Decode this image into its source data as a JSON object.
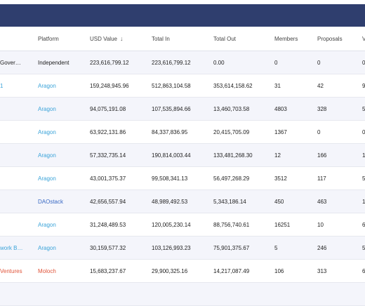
{
  "columns": {
    "platform": "Platform",
    "usd_value": "USD Value",
    "total_in": "Total In",
    "total_out": "Total Out",
    "members": "Members",
    "proposals": "Proposals",
    "more": "V"
  },
  "sort_icon": "arrow-down-icon",
  "rows": [
    {
      "name": "Gover…",
      "platform": "Independent",
      "usd": "223,616,799.12",
      "in": "223,616,799.12",
      "out": "0.00",
      "members": "0",
      "proposals": "0",
      "more": "0"
    },
    {
      "name": "1",
      "platform": "Aragon",
      "usd": "159,248,945.96",
      "in": "512,863,104.58",
      "out": "353,614,158.62",
      "members": "31",
      "proposals": "42",
      "more": "9"
    },
    {
      "name": "",
      "platform": "Aragon",
      "usd": "94,075,191.08",
      "in": "107,535,894.66",
      "out": "13,460,703.58",
      "members": "4803",
      "proposals": "328",
      "more": "5"
    },
    {
      "name": "",
      "platform": "Aragon",
      "usd": "63,922,131.86",
      "in": "84,337,836.95",
      "out": "20,415,705.09",
      "members": "1367",
      "proposals": "0",
      "more": "0"
    },
    {
      "name": "",
      "platform": "Aragon",
      "usd": "57,332,735.14",
      "in": "190,814,003.44",
      "out": "133,481,268.30",
      "members": "12",
      "proposals": "166",
      "more": "1"
    },
    {
      "name": "",
      "platform": "Aragon",
      "usd": "43,001,375.37",
      "in": "99,508,341.13",
      "out": "56,497,268.29",
      "members": "3512",
      "proposals": "117",
      "more": "5"
    },
    {
      "name": "",
      "platform": "DAOstack",
      "usd": "42,656,557.94",
      "in": "48,989,492.53",
      "out": "5,343,186.14",
      "members": "450",
      "proposals": "463",
      "more": "1"
    },
    {
      "name": "",
      "platform": "Aragon",
      "usd": "31,248,489.53",
      "in": "120,005,230.14",
      "out": "88,756,740.61",
      "members": "16251",
      "proposals": "10",
      "more": "6"
    },
    {
      "name": "work B…",
      "platform": "Aragon",
      "usd": "30,159,577.32",
      "in": "103,126,993.23",
      "out": "75,901,375.67",
      "members": "5",
      "proposals": "246",
      "more": "5"
    },
    {
      "name": "Ventures",
      "platform": "Moloch",
      "usd": "15,683,237.67",
      "in": "29,900,325.16",
      "out": "14,217,087.49",
      "members": "106",
      "proposals": "313",
      "more": "6"
    }
  ]
}
